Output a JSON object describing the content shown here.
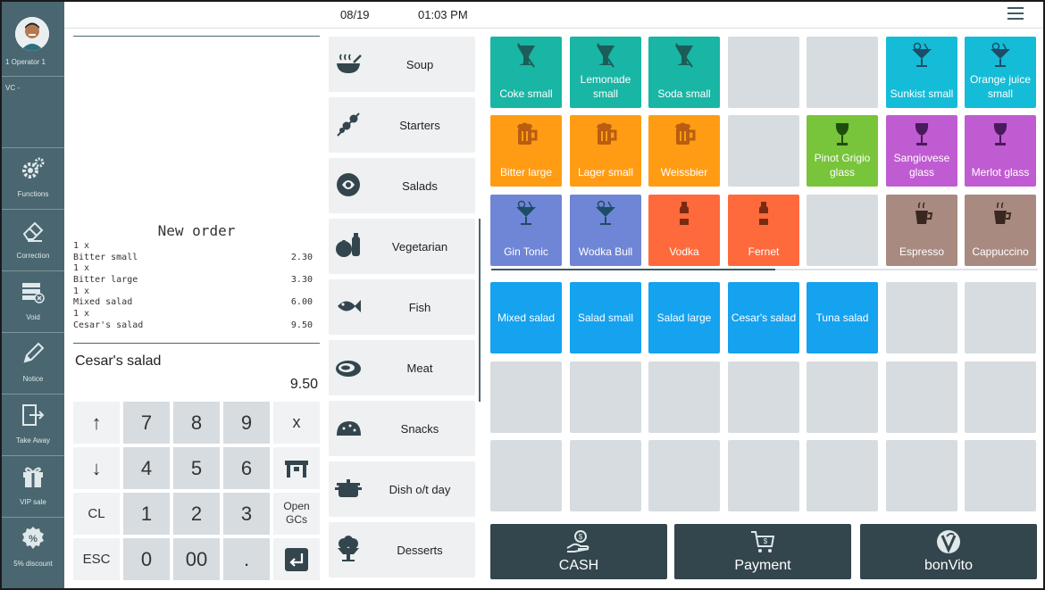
{
  "operator": {
    "label": "1  Operator 1",
    "vc": "VC -"
  },
  "sidebar": {
    "items": [
      {
        "label": "Functions",
        "icon": "gears-icon"
      },
      {
        "label": "Correction",
        "icon": "eraser-icon"
      },
      {
        "label": "Void",
        "icon": "void-icon"
      },
      {
        "label": "Notice",
        "icon": "pencil-icon"
      },
      {
        "label": "Take Away",
        "icon": "take-away-icon"
      },
      {
        "label": "VIP sale",
        "icon": "gift-icon"
      },
      {
        "label": "5% discount",
        "icon": "percent-icon"
      }
    ]
  },
  "topbar": {
    "date": "08/19",
    "time": "01:03 PM"
  },
  "receipt": {
    "title": "New order",
    "lines": [
      {
        "text": "1 x",
        "price": ""
      },
      {
        "text": "Bitter small",
        "price": "2.30"
      },
      {
        "text": "1 x",
        "price": ""
      },
      {
        "text": "Bitter large",
        "price": "3.30"
      },
      {
        "text": "1 x",
        "price": ""
      },
      {
        "text": "Mixed salad",
        "price": "6.00"
      },
      {
        "text": "1 x",
        "price": ""
      },
      {
        "text": "Cesar's salad",
        "price": "9.50"
      }
    ]
  },
  "current": {
    "item": "Cesar's salad",
    "price": "9.50"
  },
  "keypad": {
    "up": "↑",
    "down": "↓",
    "cl": "CL",
    "esc": "ESC",
    "n7": "7",
    "n8": "8",
    "n9": "9",
    "n4": "4",
    "n5": "5",
    "n6": "6",
    "n1": "1",
    "n2": "2",
    "n3": "3",
    "n0": "0",
    "n00": "00",
    "dot": ".",
    "x": "x",
    "open_gcs": "Open GCs"
  },
  "categories": [
    {
      "label": "Soup",
      "icon": "soup-icon"
    },
    {
      "label": "Starters",
      "icon": "skewer-icon"
    },
    {
      "label": "Salads",
      "icon": "salad-icon"
    },
    {
      "label": "Vegetarian",
      "icon": "vegetables-icon"
    },
    {
      "label": "Fish",
      "icon": "fish-icon"
    },
    {
      "label": "Meat",
      "icon": "steak-icon"
    },
    {
      "label": "Snacks",
      "icon": "taco-icon"
    },
    {
      "label": "Dish o/t day",
      "icon": "pot-icon"
    },
    {
      "label": "Desserts",
      "icon": "ice-cream-icon"
    }
  ],
  "drinks": [
    {
      "label": "Coke small",
      "color": "#19b5a5",
      "icon": "glass-icon"
    },
    {
      "label": "Lemonade small",
      "color": "#19b5a5",
      "icon": "glass-icon"
    },
    {
      "label": "Soda small",
      "color": "#19b5a5",
      "icon": "glass-icon"
    },
    {
      "label": "",
      "color": "#d6dcdf",
      "icon": ""
    },
    {
      "label": "",
      "color": "#d6dcdf",
      "icon": ""
    },
    {
      "label": "Sunkist small",
      "color": "#15bcd8",
      "icon": "cocktail-icon"
    },
    {
      "label": "Orange juice small",
      "color": "#15bcd8",
      "icon": "cocktail-icon"
    },
    {
      "label": "Bitter large",
      "color": "#ff9c14",
      "icon": "beer-icon"
    },
    {
      "label": "Lager small",
      "color": "#ff9c14",
      "icon": "beer-icon"
    },
    {
      "label": "Weissbier",
      "color": "#ff9c14",
      "icon": "beer-icon"
    },
    {
      "label": "",
      "color": "#d6dcdf",
      "icon": ""
    },
    {
      "label": "Pinot Grigio glass",
      "color": "#78c43a",
      "icon": "wine-icon"
    },
    {
      "label": "Sangiovese glass",
      "color": "#c05cd1",
      "icon": "wine-icon"
    },
    {
      "label": "Merlot glass",
      "color": "#c05cd1",
      "icon": "wine-icon"
    },
    {
      "label": "Gin Tonic",
      "color": "#6f86d6",
      "icon": "cocktail-icon"
    },
    {
      "label": "Wodka Bull",
      "color": "#6f86d6",
      "icon": "cocktail-icon"
    },
    {
      "label": "Vodka",
      "color": "#ff6a3c",
      "icon": "bottle-icon"
    },
    {
      "label": "Fernet",
      "color": "#ff6a3c",
      "icon": "bottle-icon"
    },
    {
      "label": "",
      "color": "#d6dcdf",
      "icon": ""
    },
    {
      "label": "Espresso",
      "color": "#a88a80",
      "icon": "coffee-icon"
    },
    {
      "label": "Cappuccino",
      "color": "#a88a80",
      "icon": "coffee-icon"
    }
  ],
  "salads": [
    {
      "label": "Mixed salad",
      "color": "#15a2ef"
    },
    {
      "label": "Salad small",
      "color": "#15a2ef"
    },
    {
      "label": "Salad large",
      "color": "#15a2ef"
    },
    {
      "label": "Cesar's salad",
      "color": "#15a2ef"
    },
    {
      "label": "Tuna salad",
      "color": "#15a2ef"
    }
  ],
  "empty_color": "#d6dcdf",
  "actions": [
    {
      "label": "CASH",
      "icon": "cash-hand-icon"
    },
    {
      "label": "Payment",
      "icon": "cart-icon"
    },
    {
      "label": "bonVito",
      "icon": "bonvito-logo-icon"
    }
  ]
}
